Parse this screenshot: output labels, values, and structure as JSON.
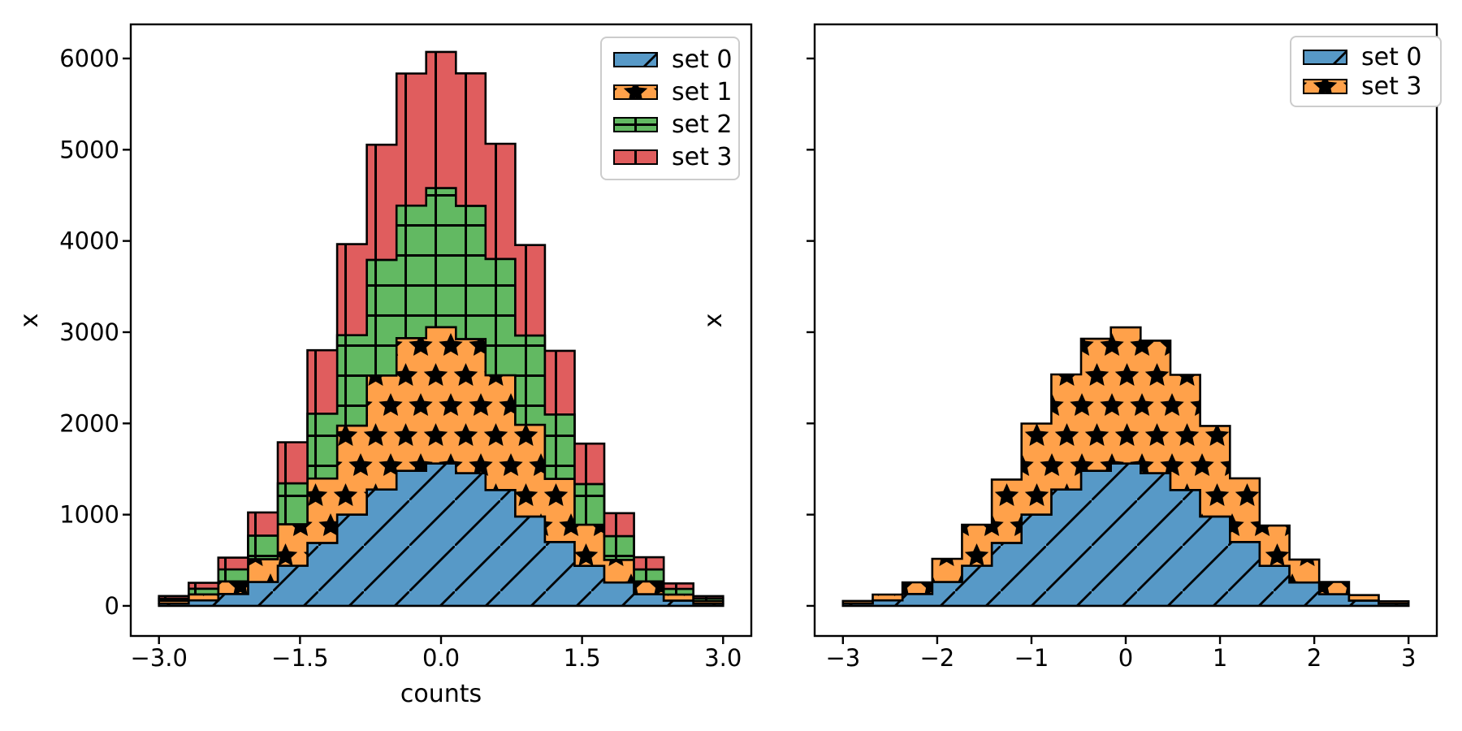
{
  "figure": {
    "background": "#ffffff"
  },
  "colors": {
    "set0_blue": "#5799c7",
    "set1_orange": "#ffa14a",
    "set2_green": "#62b962",
    "set3_red": "#e05d5e",
    "patch_edge": "#000000",
    "hatch": "#000000",
    "axis": "#000000",
    "legend_border": "#cccccc",
    "text": "#000000"
  },
  "chart_data": [
    {
      "type": "bar",
      "subtype": "stacked-step-histogram",
      "title": "",
      "xlabel": "counts",
      "ylabel": "x",
      "xlim": [
        -3.3,
        3.3
      ],
      "ylim": [
        -330,
        6374
      ],
      "grid": false,
      "bin_edges": [
        -3.0,
        -2.6842,
        -2.3684,
        -2.0526,
        -1.7368,
        -1.4211,
        -1.1053,
        -0.7895,
        -0.4737,
        -0.1579,
        0.1579,
        0.4737,
        0.7895,
        1.1053,
        1.4211,
        1.7368,
        2.0526,
        2.3684,
        2.6842,
        3.0
      ],
      "series": [
        {
          "name": "set 0",
          "hatch": "/",
          "color_key": "set0_blue",
          "values": [
            26,
            60,
            130,
            262,
            440,
            690,
            1000,
            1275,
            1480,
            1560,
            1455,
            1270,
            980,
            700,
            438,
            256,
            128,
            58,
            24
          ]
        },
        {
          "name": "set 1",
          "hatch": "*",
          "color_key": "set1_orange",
          "values": [
            30,
            66,
            138,
            250,
            455,
            705,
            975,
            1250,
            1455,
            1495,
            1470,
            1258,
            1005,
            692,
            452,
            248,
            140,
            66,
            29
          ]
        },
        {
          "name": "set 2",
          "hatch": "+",
          "color_key": "set2_green",
          "values": [
            24,
            62,
            132,
            258,
            448,
            712,
            992,
            1268,
            1452,
            1525,
            1460,
            1275,
            978,
            706,
            446,
            260,
            131,
            62,
            28
          ]
        },
        {
          "name": "set 3",
          "hatch": "|",
          "color_key": "set3_red",
          "values": [
            28,
            64,
            128,
            254,
            450,
            695,
            998,
            1262,
            1448,
            1492,
            1452,
            1262,
            992,
            698,
            442,
            252,
            134,
            60,
            26
          ]
        }
      ],
      "xticks": [
        {
          "v": -3.0,
          "label": "−3.0"
        },
        {
          "v": -1.5,
          "label": "−1.5"
        },
        {
          "v": 0.0,
          "label": "0.0"
        },
        {
          "v": 1.5,
          "label": "1.5"
        },
        {
          "v": 3.0,
          "label": "3.0"
        }
      ],
      "yticks": [
        {
          "v": 0,
          "label": "0"
        },
        {
          "v": 1000,
          "label": "1000"
        },
        {
          "v": 2000,
          "label": "2000"
        },
        {
          "v": 3000,
          "label": "3000"
        },
        {
          "v": 4000,
          "label": "4000"
        },
        {
          "v": 5000,
          "label": "5000"
        },
        {
          "v": 6000,
          "label": "6000"
        }
      ],
      "ytick_labels_visible": true,
      "legend": {
        "position": "upper right",
        "entries": [
          {
            "label": "set 0",
            "color_key": "set0_blue",
            "hatch": "/"
          },
          {
            "label": "set 1",
            "color_key": "set1_orange",
            "hatch": "*"
          },
          {
            "label": "set 2",
            "color_key": "set2_green",
            "hatch": "+"
          },
          {
            "label": "set 3",
            "color_key": "set3_red",
            "hatch": "|"
          }
        ]
      }
    },
    {
      "type": "bar",
      "subtype": "stacked-step-histogram",
      "title": "",
      "xlabel": "",
      "ylabel": "x",
      "xlim": [
        -3.3,
        3.3
      ],
      "ylim": [
        -330,
        6374
      ],
      "grid": false,
      "bin_edges": [
        -3.0,
        -2.6842,
        -2.3684,
        -2.0526,
        -1.7368,
        -1.4211,
        -1.1053,
        -0.7895,
        -0.4737,
        -0.1579,
        0.1579,
        0.4737,
        0.7895,
        1.1053,
        1.4211,
        1.7368,
        2.0526,
        2.3684,
        2.6842,
        3.0
      ],
      "series": [
        {
          "name": "set 0",
          "hatch": "/",
          "color_key": "set0_blue",
          "values": [
            26,
            60,
            130,
            262,
            440,
            690,
            1000,
            1275,
            1480,
            1560,
            1455,
            1270,
            980,
            700,
            438,
            256,
            128,
            58,
            24
          ]
        },
        {
          "name": "set 3",
          "hatch": "*",
          "color_key": "set1_orange",
          "values": [
            28,
            64,
            128,
            254,
            450,
            695,
            998,
            1262,
            1448,
            1492,
            1452,
            1262,
            992,
            698,
            442,
            252,
            134,
            60,
            26
          ]
        }
      ],
      "xticks": [
        {
          "v": -3,
          "label": "−3"
        },
        {
          "v": -2,
          "label": "−2"
        },
        {
          "v": -1,
          "label": "−1"
        },
        {
          "v": 0,
          "label": "0"
        },
        {
          "v": 1,
          "label": "1"
        },
        {
          "v": 2,
          "label": "2"
        },
        {
          "v": 3,
          "label": "3"
        }
      ],
      "yticks": [
        {
          "v": 0,
          "label": ""
        },
        {
          "v": 1000,
          "label": ""
        },
        {
          "v": 2000,
          "label": ""
        },
        {
          "v": 3000,
          "label": ""
        },
        {
          "v": 4000,
          "label": ""
        },
        {
          "v": 5000,
          "label": ""
        },
        {
          "v": 6000,
          "label": ""
        }
      ],
      "ytick_labels_visible": false,
      "legend": {
        "position": "upper right",
        "entries": [
          {
            "label": "set 0",
            "color_key": "set0_blue",
            "hatch": "/"
          },
          {
            "label": "set 3",
            "color_key": "set1_orange",
            "hatch": "*"
          }
        ]
      }
    }
  ]
}
